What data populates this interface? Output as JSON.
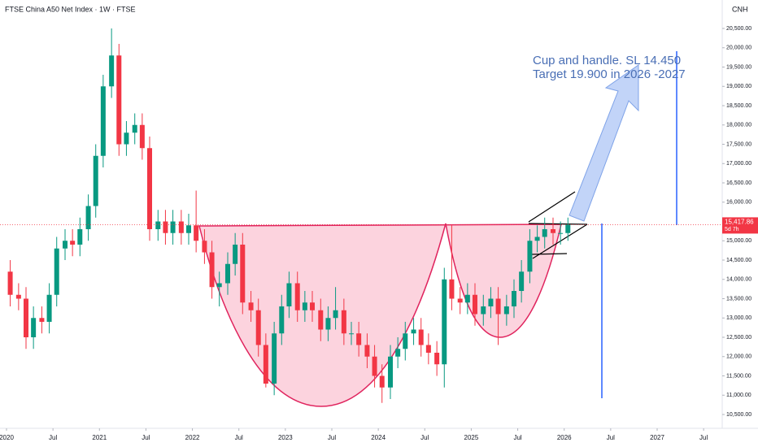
{
  "chart_data": {
    "type": "candlestick",
    "title": "FTSE China A50 Net Index · 1W · FTSE",
    "currency": "CNH",
    "annotation_lines": [
      "Cup and handle. SL 14.450",
      "Target 19.900 in 2026 -2027"
    ],
    "last_price": 15417.86,
    "last_price_label": "15,417.86",
    "countdown": "5d 7h",
    "up_color": "#089981",
    "down_color": "#f23645",
    "grid": false,
    "xlim": [
      2019.93,
      2027.7
    ],
    "ylim": [
      10142,
      21237
    ],
    "xticks": [
      2020,
      {
        "value": 2020.5,
        "label": "Jul"
      },
      2021,
      {
        "value": 2021.5,
        "label": "Jul"
      },
      2022,
      {
        "value": 2022.5,
        "label": "Jul"
      },
      2023,
      {
        "value": 2023.5,
        "label": "Jul"
      },
      2024,
      {
        "value": 2024.5,
        "label": "Jul"
      },
      2025,
      {
        "value": 2025.5,
        "label": "Jul"
      },
      2026,
      {
        "value": 2026.5,
        "label": "Jul"
      },
      2027,
      {
        "value": 2027.5,
        "label": "Jul"
      }
    ],
    "yticks": [
      {
        "value": 10500,
        "label": "10,500.00"
      },
      {
        "value": 11000,
        "label": "11,000.00"
      },
      {
        "value": 11500,
        "label": "11,500.00"
      },
      {
        "value": 12000,
        "label": "12,000.00"
      },
      {
        "value": 12500,
        "label": "12,500.00"
      },
      {
        "value": 13000,
        "label": "13,000.00"
      },
      {
        "value": 13500,
        "label": "13,500.00"
      },
      {
        "value": 14000,
        "label": "14,000.00"
      },
      {
        "value": 14500,
        "label": "14,500.00"
      },
      {
        "value": 15000,
        "label": "15,000.00"
      },
      {
        "value": 15500,
        "label": "15,500.00"
      },
      {
        "value": 16000,
        "label": "16,000.00"
      },
      {
        "value": 16500,
        "label": "16,500.00"
      },
      {
        "value": 17000,
        "label": "17,000.00"
      },
      {
        "value": 17500,
        "label": "17,500.00"
      },
      {
        "value": 18000,
        "label": "18,000.00"
      },
      {
        "value": 18500,
        "label": "18,500.00"
      },
      {
        "value": 19000,
        "label": "19,000.00"
      },
      {
        "value": 19500,
        "label": "19,500.00"
      },
      {
        "value": 20000,
        "label": "20,000.00"
      },
      {
        "value": 20500,
        "label": "20,500.00"
      }
    ],
    "x": [
      2020.04,
      2020.13,
      2020.21,
      2020.29,
      2020.38,
      2020.46,
      2020.54,
      2020.63,
      2020.71,
      2020.79,
      2020.88,
      2020.96,
      2021.04,
      2021.13,
      2021.21,
      2021.29,
      2021.38,
      2021.46,
      2021.54,
      2021.63,
      2021.71,
      2021.79,
      2021.88,
      2021.96,
      2022.04,
      2022.13,
      2022.21,
      2022.29,
      2022.38,
      2022.46,
      2022.54,
      2022.63,
      2022.71,
      2022.79,
      2022.88,
      2022.96,
      2023.04,
      2023.13,
      2023.21,
      2023.29,
      2023.38,
      2023.46,
      2023.54,
      2023.63,
      2023.71,
      2023.79,
      2023.88,
      2023.96,
      2024.04,
      2024.13,
      2024.21,
      2024.29,
      2024.38,
      2024.46,
      2024.54,
      2024.63,
      2024.71,
      2024.79,
      2024.88,
      2024.96,
      2025.04,
      2025.13,
      2025.21,
      2025.29,
      2025.38,
      2025.46,
      2025.54,
      2025.63,
      2025.71,
      2025.79,
      2025.88,
      2025.96,
      2026.04
    ],
    "open": [
      14200,
      13600,
      13500,
      12500,
      13000,
      12900,
      13600,
      14800,
      15000,
      14900,
      15300,
      15900,
      17200,
      19000,
      19800,
      17500,
      17800,
      18000,
      17400,
      15300,
      15500,
      15200,
      15500,
      15200,
      15400,
      15000,
      14700,
      13800,
      13900,
      14400,
      14900,
      13400,
      13200,
      12300,
      11300,
      12600,
      13300,
      13900,
      13200,
      13400,
      13200,
      12700,
      13000,
      13200,
      12600,
      12600,
      12300,
      12000,
      11500,
      11200,
      12000,
      12200,
      12600,
      12700,
      12300,
      12100,
      11800,
      14000,
      13500,
      13400,
      13600,
      13100,
      13300,
      13500,
      13100,
      13300,
      13700,
      14200,
      15000,
      15100,
      15300,
      15200,
      15200
    ],
    "high": [
      14500,
      13900,
      13800,
      13300,
      13300,
      13900,
      15100,
      15300,
      15300,
      15600,
      16200,
      17500,
      19300,
      20500,
      20100,
      18100,
      18300,
      18300,
      17700,
      15800,
      15800,
      15800,
      15800,
      15700,
      16300,
      15300,
      15000,
      14200,
      14700,
      15200,
      15200,
      13700,
      13500,
      12600,
      12900,
      13600,
      14200,
      14200,
      13700,
      13700,
      13500,
      13300,
      13800,
      13500,
      12900,
      12900,
      12600,
      12300,
      11800,
      12300,
      12500,
      12900,
      13000,
      13000,
      12600,
      12400,
      14300,
      15400,
      13800,
      13900,
      13900,
      13600,
      13800,
      13800,
      13600,
      14000,
      14500,
      15300,
      15400,
      15600,
      15600,
      15500,
      15600
    ],
    "low": [
      13300,
      13200,
      12200,
      12200,
      12600,
      12600,
      13300,
      14500,
      14600,
      14600,
      15000,
      15600,
      16900,
      18700,
      17200,
      17200,
      17500,
      17100,
      15000,
      15000,
      14900,
      14900,
      14900,
      14900,
      14700,
      14400,
      13500,
      13300,
      13600,
      14100,
      13100,
      12900,
      12000,
      11200,
      11000,
      12300,
      13000,
      12900,
      12900,
      12900,
      12400,
      12400,
      12700,
      12300,
      12300,
      12000,
      11700,
      11200,
      10800,
      10900,
      11700,
      11900,
      12300,
      12000,
      11800,
      11500,
      11200,
      13200,
      13100,
      13100,
      12800,
      12800,
      13000,
      12300,
      12800,
      13000,
      13400,
      13900,
      14700,
      14800,
      14900,
      14900,
      15000
    ],
    "close": [
      13600,
      13500,
      12500,
      13000,
      12900,
      13600,
      14800,
      15000,
      14900,
      15300,
      15900,
      17200,
      19000,
      19800,
      17500,
      17800,
      18000,
      17400,
      15300,
      15500,
      15200,
      15500,
      15200,
      15400,
      15000,
      14700,
      13800,
      13900,
      14400,
      14900,
      13400,
      13200,
      12300,
      11300,
      12600,
      13300,
      13900,
      13200,
      13400,
      13200,
      12700,
      13000,
      13200,
      12600,
      12600,
      12300,
      12000,
      11500,
      11200,
      12000,
      12200,
      12600,
      12700,
      12300,
      12100,
      11800,
      14000,
      13500,
      13400,
      13600,
      13100,
      13300,
      13500,
      13100,
      13300,
      13700,
      14200,
      15000,
      15100,
      15300,
      15200,
      15200,
      15418
    ]
  }
}
